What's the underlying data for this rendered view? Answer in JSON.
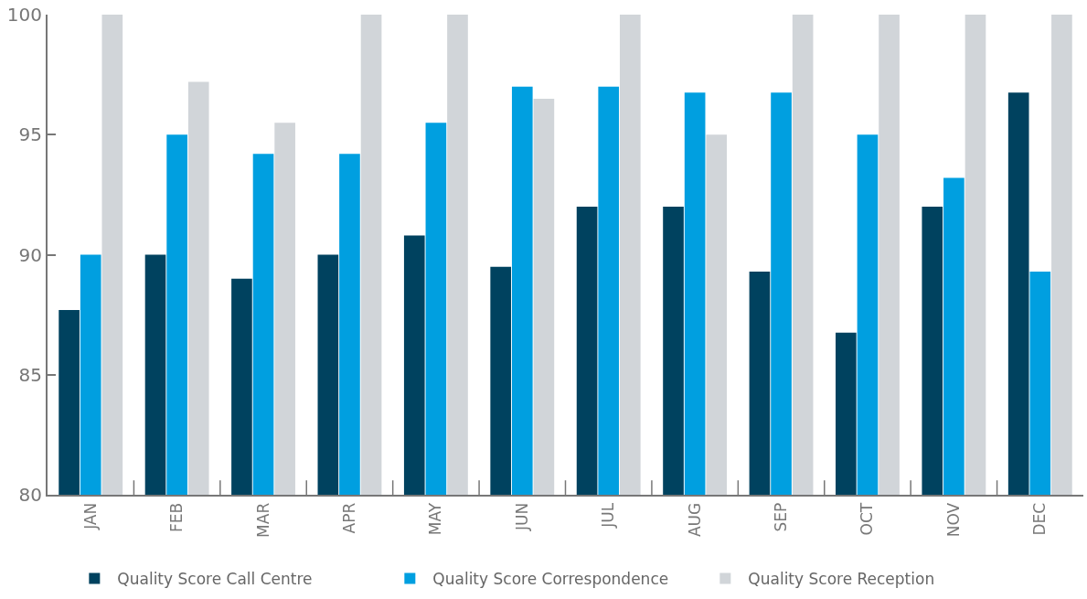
{
  "chart_data": {
    "type": "bar",
    "categories": [
      "JAN",
      "FEB",
      "MAR",
      "APR",
      "MAY",
      "JUN",
      "JUL",
      "AUG",
      "SEP",
      "OCT",
      "NOV",
      "DEC"
    ],
    "series": [
      {
        "name": "Quality Score Call Centre",
        "color": "#00425f",
        "values": [
          87.7,
          90,
          89,
          90,
          90.8,
          89.5,
          92,
          92,
          89.3,
          86.75,
          92,
          96.75
        ]
      },
      {
        "name": "Quality Score Correspondence",
        "color": "#009fe0",
        "values": [
          90,
          95,
          94.2,
          94.2,
          95.5,
          97,
          97,
          96.75,
          96.75,
          95,
          93.2,
          89.3
        ]
      },
      {
        "name": "Quality Score Reception",
        "color": "#d1d5d9",
        "values": [
          100,
          97.2,
          95.5,
          100,
          100,
          96.5,
          100,
          95,
          100,
          100,
          100,
          100
        ]
      }
    ],
    "ylim": [
      80,
      100
    ],
    "yticks": [
      80,
      85,
      90,
      95,
      100
    ],
    "legend": "bottom"
  }
}
